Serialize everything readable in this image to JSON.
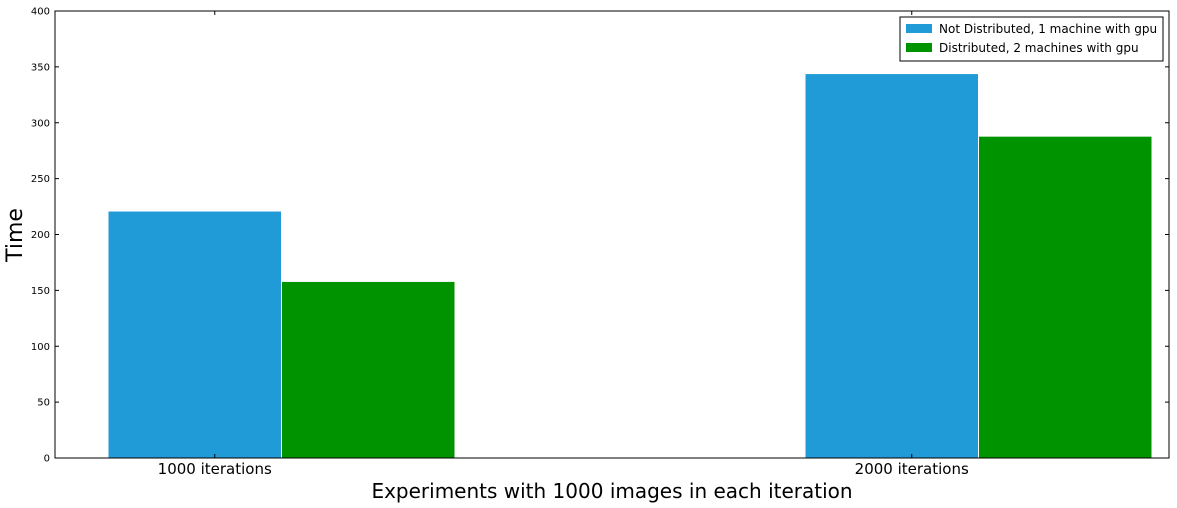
{
  "chart_data": {
    "type": "bar",
    "title": "",
    "xlabel": "Experiments with 1000 images in each iteration",
    "ylabel": "Time",
    "categories": [
      "1000 iterations",
      "2000 iterations"
    ],
    "series": [
      {
        "name": "Not Distributed, 1 machine with gpu",
        "color": "#219bd8",
        "values": [
          221,
          344
        ]
      },
      {
        "name": "Distributed, 2 machines with gpu",
        "color": "#009300",
        "values": [
          158,
          288
        ]
      }
    ],
    "ylim": [
      0,
      400
    ],
    "yticks": [
      0,
      50,
      100,
      150,
      200,
      250,
      300,
      350,
      400
    ],
    "grid": false,
    "legend_position": "top-right"
  }
}
